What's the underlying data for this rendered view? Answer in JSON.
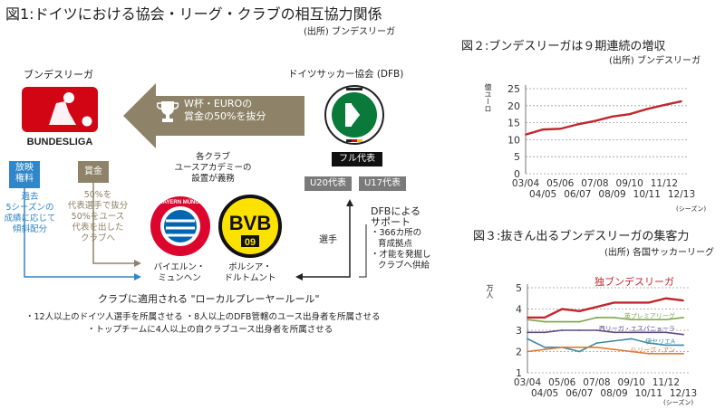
{
  "fig1": {
    "title": "図1:ドイツにおける協会・リーグ・クラブの相互協力関係",
    "source": "(出所) ブンデスリーガ",
    "bundesliga_label": "ブンデスリーガ",
    "bundesliga_logo_text": "BUNDESLIGA",
    "dfb_label": "ドイツサッカー協会 (DFB)",
    "arrow_text_1": "W杯・EUROの",
    "arrow_text_2": "賞金の50%を抜分",
    "box_broadcast_1": "放映",
    "box_broadcast_2": "権料",
    "box_prize": "賞金",
    "broadcast_note": [
      "過去",
      "5シーズンの",
      "成績に応じて",
      "傾斜配分"
    ],
    "prize_note": [
      "50%を",
      "代表選手で抜分",
      "50%をユース",
      "代表を出した",
      "クラブへ"
    ],
    "clubs_note": [
      "各クラブ",
      "ユースアカデミーの",
      "設置が義務"
    ],
    "team_full": "フル代表",
    "team_u20": "U20代表",
    "team_u17": "U17代表",
    "players_label": "選手",
    "dfb_support": [
      "DFBによる",
      "サポート",
      "・366カ所の",
      "育成拠点",
      "・才能を発掘し",
      "クラブへ供給"
    ],
    "bayern_name": [
      "バイエルン・",
      "ミュンヘン"
    ],
    "bayern_logo_text": "FC BAYERN MÜNCHEN",
    "bvb_name": [
      "ボルシア・",
      "ドルトムント"
    ],
    "bvb_logo_text": "BVB",
    "bvb_year": "09",
    "rule_title": "クラブに適用される \"ローカルプレーヤールール\"",
    "rules": [
      "・12人以上のドイツ人選手を所属させる ・8人以上のDFB管轄のユース出身者を所属させる",
      "・トップチームに4人以上の自クラブユース出身者を所属させる"
    ]
  },
  "fig2": {
    "title": "図２:ブンデスリーガは９期連続の増収",
    "source": "(出所) ブンデスリーガ",
    "y_unit": "億ユーロ",
    "season_suffix": "(シーズン)",
    "x_labels_top": [
      "03/04",
      "05/06",
      "07/08",
      "09/10",
      "11/12"
    ],
    "x_labels_bottom": [
      "04/05",
      "06/07",
      "08/09",
      "10/11",
      "12/13"
    ],
    "line_color": "#c0272d"
  },
  "fig3": {
    "title": "図３:抜きん出るブンデスリーガの集客力",
    "source": "(出所) 各国サッカーリーグ",
    "y_unit": "万人",
    "season_suffix": "(シーズン)",
    "x_labels_top": [
      "03/04",
      "05/06",
      "07/08",
      "09/10",
      "11/12"
    ],
    "x_labels_bottom": [
      "04/05",
      "06/07",
      "08/09",
      "10/11",
      "12/13"
    ],
    "annotation": "独ブンデスリーガ"
  },
  "chart_data": [
    {
      "type": "line",
      "title": "図２:ブンデスリーガは９期連続の増収",
      "ylabel": "億ユーロ",
      "categories": [
        "03/04",
        "04/05",
        "05/06",
        "06/07",
        "07/08",
        "08/09",
        "09/10",
        "10/11",
        "11/12",
        "12/13"
      ],
      "ylim": [
        0,
        25
      ],
      "yticks": [
        0,
        5,
        10,
        15,
        20,
        25
      ],
      "grid": true,
      "series": [
        {
          "values": [
            11.5,
            13.0,
            13.2,
            14.5,
            15.5,
            16.8,
            17.5,
            19.0,
            20.2,
            21.3
          ],
          "color": "#c0272d"
        }
      ]
    },
    {
      "type": "line",
      "title": "図３:抜きん出るブンデスリーガの集客力",
      "ylabel": "万人",
      "categories": [
        "03/04",
        "04/05",
        "05/06",
        "06/07",
        "07/08",
        "08/09",
        "09/10",
        "10/11",
        "11/12",
        "12/13"
      ],
      "ylim": [
        1,
        5
      ],
      "yticks": [
        1,
        2,
        3,
        4,
        5
      ],
      "grid": true,
      "series": [
        {
          "name": "独ブンデスリーガ",
          "values": [
            3.6,
            3.6,
            4.0,
            3.9,
            4.1,
            4.3,
            4.3,
            4.3,
            4.5,
            4.4
          ],
          "color": "#c0272d"
        },
        {
          "name": "英プレミアリーグ",
          "values": [
            3.5,
            3.4,
            3.4,
            3.4,
            3.6,
            3.6,
            3.5,
            3.5,
            3.5,
            3.6
          ],
          "color": "#7aa54a"
        },
        {
          "name": "西リーガ・エスパニョーラ",
          "values": [
            2.9,
            2.9,
            3.0,
            3.0,
            3.0,
            2.9,
            2.9,
            2.9,
            2.9,
            2.8
          ],
          "color": "#5a4a8a"
        },
        {
          "name": "伊セリエA",
          "values": [
            2.6,
            2.2,
            2.2,
            2.0,
            2.4,
            2.5,
            2.6,
            2.4,
            2.3,
            2.3
          ],
          "color": "#3a8aa8"
        },
        {
          "name": "仏リーグ・アン",
          "values": [
            2.0,
            2.1,
            2.2,
            2.2,
            2.2,
            2.1,
            2.0,
            1.9,
            1.9,
            1.9
          ],
          "color": "#e07b3a"
        }
      ]
    }
  ]
}
